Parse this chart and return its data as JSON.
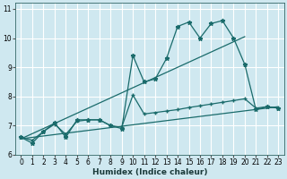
{
  "xlabel": "Humidex (Indice chaleur)",
  "bg_color": "#cfe8f0",
  "grid_color": "#ffffff",
  "line_color": "#1a6b6b",
  "xlim": [
    -0.5,
    23.5
  ],
  "ylim": [
    6.0,
    11.2
  ],
  "x_ticks": [
    0,
    1,
    2,
    3,
    4,
    5,
    6,
    7,
    8,
    9,
    10,
    11,
    12,
    13,
    14,
    15,
    16,
    17,
    18,
    19,
    20,
    21,
    22,
    23
  ],
  "y_ticks": [
    6,
    7,
    8,
    9,
    10,
    11
  ],
  "line1_x": [
    0,
    1,
    2,
    3,
    4,
    5,
    6,
    7,
    8,
    9,
    10,
    11,
    12,
    13,
    14,
    15,
    16,
    17,
    18,
    19,
    20,
    21,
    22,
    23
  ],
  "line1_y": [
    6.6,
    6.4,
    6.8,
    7.1,
    6.6,
    7.2,
    7.2,
    7.2,
    7.0,
    6.9,
    9.4,
    8.5,
    8.6,
    9.3,
    10.4,
    10.55,
    10.0,
    10.5,
    10.6,
    10.0,
    9.1,
    7.55,
    7.65,
    7.6
  ],
  "line2_x": [
    0,
    1,
    2,
    3,
    4,
    5,
    6,
    7,
    8,
    9,
    10,
    11,
    12,
    13,
    14,
    15,
    16,
    17,
    18,
    19,
    20,
    21,
    22,
    23
  ],
  "line2_y": [
    6.6,
    6.5,
    6.8,
    7.05,
    6.7,
    7.15,
    7.2,
    7.2,
    7.0,
    6.95,
    8.05,
    7.4,
    7.45,
    7.5,
    7.55,
    7.62,
    7.68,
    7.74,
    7.8,
    7.86,
    7.92,
    7.6,
    7.65,
    7.6
  ],
  "line3_x": [
    0,
    23
  ],
  "line3_y": [
    6.55,
    7.65
  ],
  "line4_x": [
    0,
    20
  ],
  "line4_y": [
    6.55,
    10.05
  ]
}
